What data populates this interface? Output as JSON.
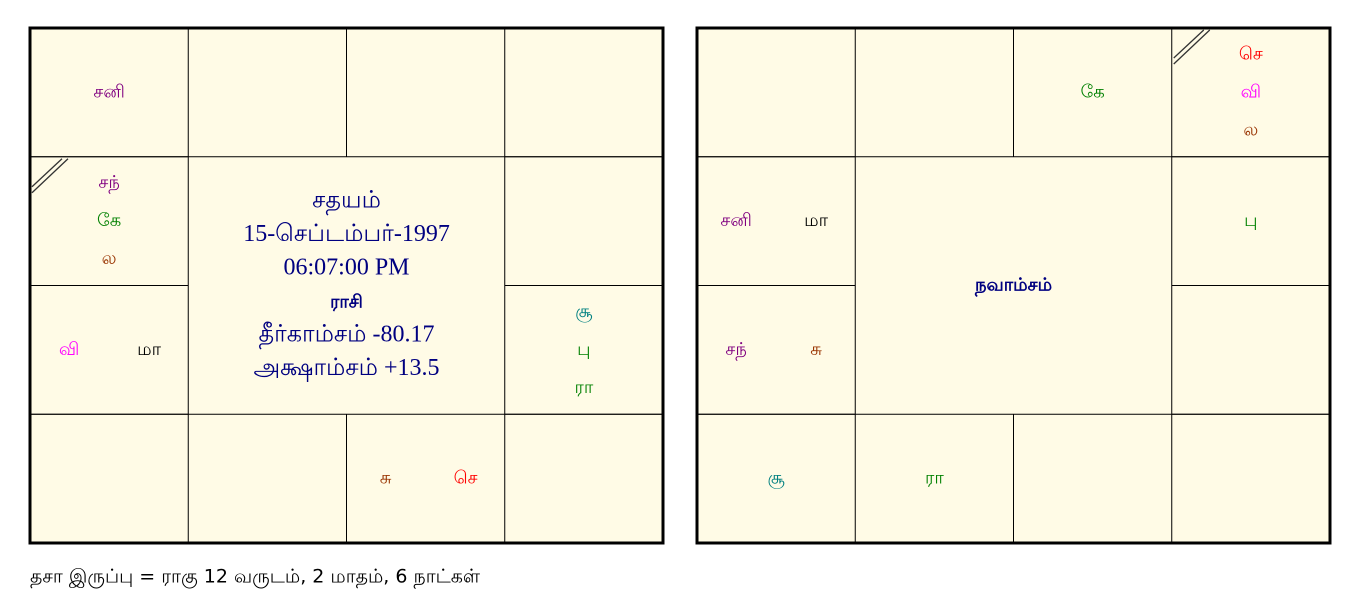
{
  "charts": [
    {
      "ascendant_house": 11,
      "houses": [
        [
          {
            "text": "சனி",
            "color": "#800080"
          }
        ],
        [],
        [],
        [],
        [],
        [
          {
            "text": "சூ",
            "color": "#008080"
          },
          {
            "text": "பு",
            "color": "#008000"
          },
          {
            "text": "ரா",
            "color": "#008000"
          }
        ],
        [],
        [
          {
            "text": "சு",
            "color": "#993300"
          },
          {
            "text": "செ",
            "color": "#ff0000"
          }
        ],
        [],
        [],
        [
          {
            "text": "வி",
            "color": "#ff00ff"
          },
          {
            "text": "மா",
            "color": "#000000"
          }
        ],
        [
          {
            "text": "சந்",
            "color": "#800080"
          },
          {
            "text": "கே",
            "color": "#008000"
          },
          {
            "text": "ல",
            "color": "#993300"
          }
        ]
      ],
      "center": [
        {
          "text": "சதயம்"
        },
        {
          "text": "15-செப்டம்பர்-1997"
        },
        {
          "text": "06:07:00 PM"
        },
        {
          "text": "ராசி",
          "bold": true
        },
        {
          "text": "தீர்காம்சம்   -80.17"
        },
        {
          "text": "அக்ஷாம்சம்   +13.5"
        }
      ]
    },
    {
      "ascendant_house": 3,
      "houses": [
        [],
        [],
        [
          {
            "text": "கே",
            "color": "#008000"
          }
        ],
        [
          {
            "text": "செ",
            "color": "#ff0000"
          },
          {
            "text": "வி",
            "color": "#ff00ff"
          },
          {
            "text": "ல",
            "color": "#993300"
          }
        ],
        [
          {
            "text": "பு",
            "color": "#008000"
          }
        ],
        [],
        [],
        [],
        [
          {
            "text": "ரா",
            "color": "#008000"
          }
        ],
        [
          {
            "text": "சூ",
            "color": "#008080"
          }
        ],
        [
          {
            "text": "சந்",
            "color": "#800080"
          },
          {
            "text": "சு",
            "color": "#993300"
          }
        ],
        [
          {
            "text": "சனி",
            "color": "#800080"
          },
          {
            "text": "மா",
            "color": "#000000"
          }
        ]
      ],
      "center": [
        {
          "text": "நவாம்சம்",
          "bold": true
        }
      ]
    }
  ],
  "footer": "தசா  இருப்பு = ராகு 12 வருடம், 2 மாதம், 6 நாட்கள்"
}
